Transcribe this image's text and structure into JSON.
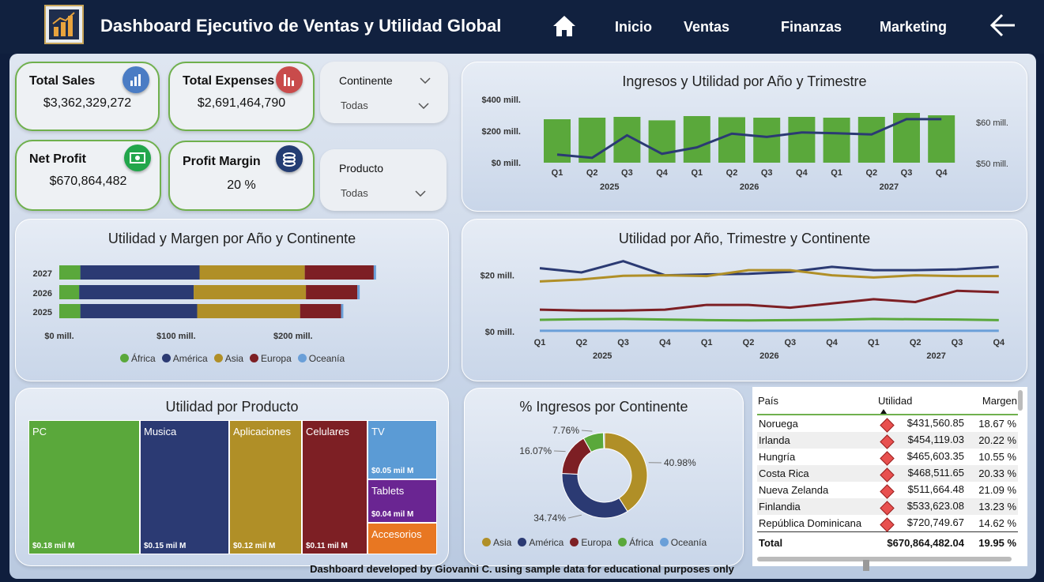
{
  "header": {
    "title": "Dashboard Ejecutivo de Ventas y Utilidad Global",
    "nav": [
      "Inicio",
      "Ventas",
      "Finanzas",
      "Marketing"
    ]
  },
  "kpis": {
    "total_sales": {
      "label": "Total Sales",
      "value": "$3,362,329,272"
    },
    "total_expenses": {
      "label": "Total Expenses",
      "value": "$2,691,464,790"
    },
    "net_profit": {
      "label": "Net Profit",
      "value": "$670,864,482"
    },
    "profit_margin": {
      "label": "Profit Margin",
      "value": "20 %"
    }
  },
  "slicers": {
    "continente": {
      "label": "Continente",
      "value": "Todas"
    },
    "producto": {
      "label": "Producto",
      "value": "Todas"
    }
  },
  "colors": {
    "africa": "#5aa83b",
    "america": "#2b3a73",
    "asia": "#b08f27",
    "europa": "#7d1f24",
    "oceania": "#6a9fd8",
    "accent_green": "#6fb04d"
  },
  "chart_data": [
    {
      "type": "bar",
      "title": "Ingresos y Utilidad por Año y Trimestre",
      "categories": [
        "Q1",
        "Q2",
        "Q3",
        "Q4",
        "Q1",
        "Q2",
        "Q3",
        "Q4",
        "Q1",
        "Q2",
        "Q3",
        "Q4"
      ],
      "groups": [
        "2025",
        "2026",
        "2027"
      ],
      "y_ticks": [
        "$0 mill.",
        "$200 mill.",
        "$400 mill."
      ],
      "y2_ticks": [
        "$50 mill.",
        "$60 mill."
      ],
      "ylim": [
        0,
        400
      ],
      "y2lim": [
        50,
        62
      ],
      "series": [
        {
          "values": [
            275,
            285,
            290,
            268,
            295,
            288,
            285,
            290,
            285,
            290,
            315,
            300
          ]
        },
        {
          "values": [
            52,
            51.2,
            56.8,
            52.2,
            53.8,
            57.2,
            56.4,
            57.5,
            57.3,
            57,
            60.8,
            60.8
          ]
        }
      ]
    },
    {
      "type": "bar",
      "title": "Utilidad y Margen por Año y Continente",
      "categories": [
        "2027",
        "2026",
        "2025"
      ],
      "x_ticks": [
        "$0 mill.",
        "$100 mill.",
        "$200 mill."
      ],
      "xlim": [
        0,
        240
      ],
      "series": [
        {
          "name": "África",
          "values": [
            18,
            17,
            18
          ]
        },
        {
          "name": "América",
          "values": [
            102,
            98,
            100
          ]
        },
        {
          "name": "Asia",
          "values": [
            90,
            96,
            88
          ]
        },
        {
          "name": "Europa",
          "values": [
            59,
            44,
            35
          ]
        },
        {
          "name": "Oceanía",
          "values": [
            2,
            2,
            2
          ]
        }
      ]
    },
    {
      "type": "line",
      "title": "Utilidad por Año, Trimestre y Continente",
      "categories": [
        "Q1",
        "Q2",
        "Q3",
        "Q4",
        "Q1",
        "Q2",
        "Q3",
        "Q4",
        "Q1",
        "Q2",
        "Q3",
        "Q4"
      ],
      "groups": [
        "2025",
        "2026",
        "2027"
      ],
      "y_ticks": [
        "$0 mill.",
        "$20 mill."
      ],
      "ylim": [
        0,
        28
      ],
      "series": [
        {
          "name": "América",
          "values": [
            22.5,
            21,
            25,
            20,
            20.3,
            20.5,
            21.2,
            23,
            21.8,
            21.8,
            22.1,
            23
          ]
        },
        {
          "name": "Asia",
          "values": [
            17.8,
            18.5,
            19.8,
            20,
            19.7,
            21.8,
            21.8,
            20,
            19.2,
            20,
            19.7,
            19.7
          ]
        },
        {
          "name": "Europa",
          "values": [
            7.8,
            7.5,
            7.5,
            7.8,
            9.5,
            9.5,
            8.5,
            10,
            11.5,
            10.5,
            14.5,
            14
          ]
        },
        {
          "name": "África",
          "values": [
            4.2,
            4.4,
            4.5,
            4.3,
            4.1,
            4.0,
            4.1,
            4.2,
            4.5,
            4.4,
            4.3,
            4.1
          ]
        },
        {
          "name": "Oceanía",
          "values": [
            0.3,
            0.3,
            0.3,
            0.3,
            0.3,
            0.3,
            0.3,
            0.3,
            0.3,
            0.3,
            0.3,
            0.3
          ]
        }
      ]
    },
    {
      "type": "heatmap",
      "title": "Utilidad por Producto",
      "items": [
        {
          "name": "PC",
          "value_label": "$0.18 mil M",
          "color": "#5aa83b"
        },
        {
          "name": "Musica",
          "value_label": "$0.15 mil M",
          "color": "#2b3a73"
        },
        {
          "name": "Aplicaciones",
          "value_label": "$0.12 mil M",
          "color": "#b08f27"
        },
        {
          "name": "Celulares",
          "value_label": "$0.11 mil M",
          "color": "#7d1f24"
        },
        {
          "name": "TV",
          "value_label": "$0.05 mil M",
          "color": "#5b9bd5"
        },
        {
          "name": "Tablets",
          "value_label": "$0.04 mil M",
          "color": "#6a2592"
        },
        {
          "name": "Accesorios",
          "value_label": "",
          "color": "#e87722"
        }
      ]
    },
    {
      "type": "pie",
      "title": "% Ingresos por Continente",
      "slices": [
        {
          "name": "Asia",
          "value": 40.98,
          "label": "40.98%"
        },
        {
          "name": "América",
          "value": 34.74,
          "label": "34.74%"
        },
        {
          "name": "Europa",
          "value": 16.07,
          "label": "16.07%"
        },
        {
          "name": "África",
          "value": 7.76,
          "label": "7.76%"
        },
        {
          "name": "Oceanía",
          "value": 0.45,
          "label": ""
        }
      ]
    },
    {
      "type": "table",
      "columns": [
        "País",
        "Utilidad",
        "Margen"
      ],
      "rows": [
        [
          "Noruega",
          "$431,560.85",
          "18.67 %"
        ],
        [
          "Irlanda",
          "$454,119.03",
          "20.22 %"
        ],
        [
          "Hungría",
          "$465,603.35",
          "10.55 %"
        ],
        [
          "Costa Rica",
          "$468,511.65",
          "20.33 %"
        ],
        [
          "Nueva Zelanda",
          "$511,664.48",
          "21.09 %"
        ],
        [
          "Finlandia",
          "$533,623.08",
          "13.23 %"
        ],
        [
          "República Dominicana",
          "$720,749.67",
          "14.62 %"
        ]
      ],
      "total": [
        "Total",
        "$670,864,482.04",
        "19.95 %"
      ]
    }
  ],
  "legend": [
    "África",
    "América",
    "Asia",
    "Europa",
    "Oceanía"
  ],
  "pie_legend": [
    "Asia",
    "América",
    "Europa",
    "África",
    "Oceanía"
  ],
  "footer": "Dashboard developed by Giovanni C. using sample data for educational purposes only"
}
